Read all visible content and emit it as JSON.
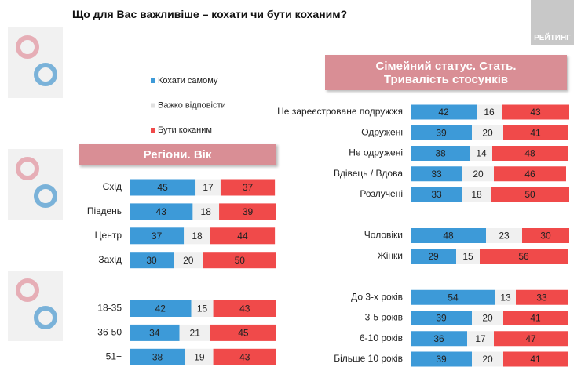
{
  "title": "Що для Вас важливіше – кохати чи бути коханим?",
  "logo": "РЕЙТИНГ",
  "chart_data": [
    {
      "type": "stacked-bar",
      "title": "Регіони. Вік",
      "categories": [
        "Схід",
        "Південь",
        "Центр",
        "Захід",
        null,
        "18-35",
        "36-50",
        "51+"
      ],
      "series": [
        {
          "name": "Кохати самому",
          "color": "#3d9ad8",
          "values": [
            45,
            43,
            37,
            30,
            null,
            42,
            34,
            38
          ]
        },
        {
          "name": "Важко відповісти",
          "color": "#f0f0f0",
          "values": [
            17,
            18,
            18,
            20,
            null,
            15,
            21,
            19
          ]
        },
        {
          "name": "Бути коханим",
          "color": "#f04a4a",
          "values": [
            37,
            39,
            44,
            50,
            null,
            43,
            45,
            43
          ]
        }
      ]
    },
    {
      "type": "stacked-bar",
      "title": "Сімейний статус. Стать. Тривалість стосунків",
      "categories": [
        "Не зареєстроване подружжя",
        "Одружені",
        "Не одружені",
        "Вдівець / Вдова",
        "Розлучені",
        null,
        "Чоловіки",
        "Жінки",
        null,
        "До 3-х років",
        "3-5 років",
        "6-10 років",
        "Більше 10 років"
      ],
      "series": [
        {
          "color": "#3d9ad8",
          "values": [
            42,
            39,
            38,
            33,
            33,
            null,
            48,
            29,
            null,
            54,
            39,
            36,
            39
          ]
        },
        {
          "color": "#f0f0f0",
          "values": [
            16,
            20,
            14,
            20,
            18,
            null,
            23,
            15,
            null,
            13,
            20,
            17,
            20
          ]
        },
        {
          "color": "#f04a4a",
          "values": [
            43,
            41,
            48,
            46,
            50,
            null,
            30,
            56,
            null,
            33,
            41,
            47,
            41
          ]
        }
      ]
    }
  ]
}
